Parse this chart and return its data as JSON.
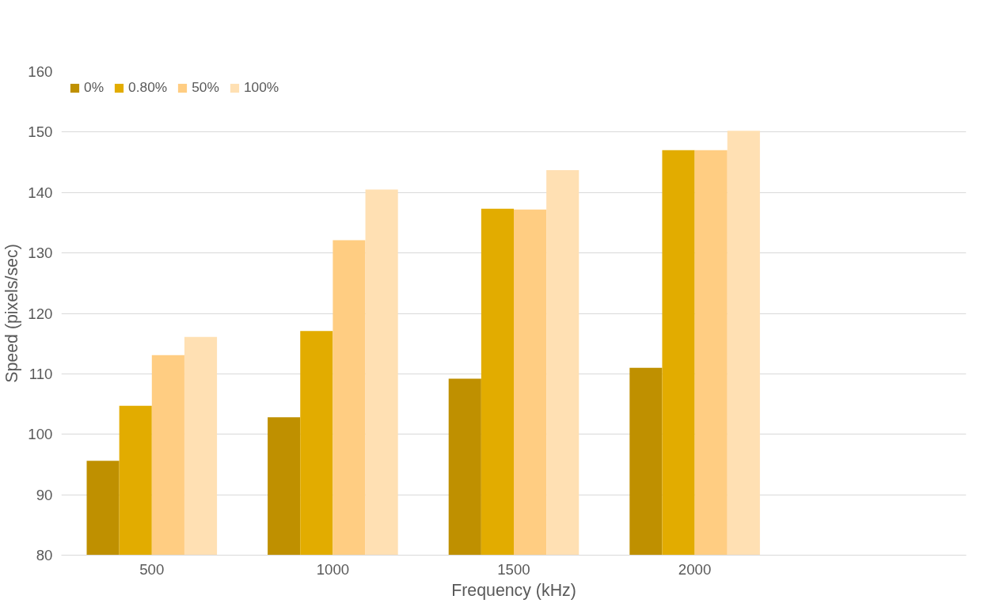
{
  "chart_data": {
    "type": "bar",
    "xlabel": "Frequency (kHz)",
    "ylabel": "Speed (pixels/sec)",
    "categories": [
      "500",
      "1000",
      "1500",
      "2000",
      null
    ],
    "series": [
      {
        "name": "0%",
        "color": "#bf9000",
        "values": [
          95.6,
          102.8,
          109.2,
          111.0,
          null
        ]
      },
      {
        "name": "0.80%",
        "color": "#e2ac00",
        "values": [
          104.7,
          117.1,
          137.3,
          147.0,
          null
        ]
      },
      {
        "name": "50%",
        "color": "#ffcd82",
        "values": [
          113.1,
          132.1,
          137.2,
          147.0,
          null
        ]
      },
      {
        "name": "100%",
        "color": "#ffe0b3",
        "values": [
          116.1,
          140.5,
          143.7,
          150.2,
          null
        ]
      }
    ],
    "ylim": [
      80,
      160
    ],
    "yticks": [
      80,
      90,
      100,
      110,
      120,
      130,
      140,
      150,
      160
    ],
    "grid": "y",
    "legend": "top left"
  }
}
